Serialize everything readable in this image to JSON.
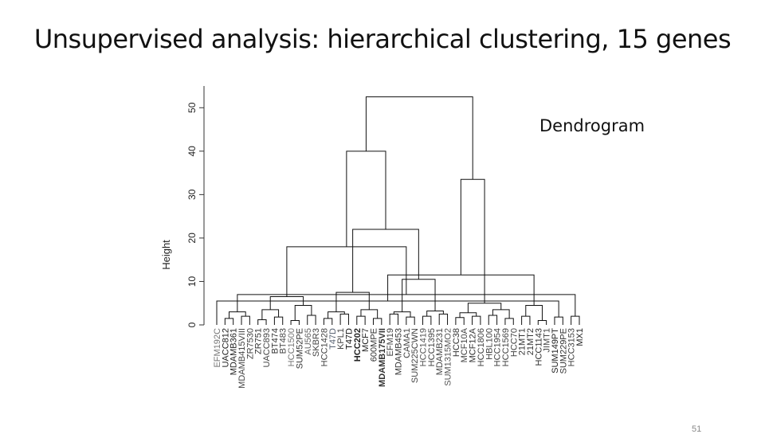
{
  "slide": {
    "title": "Unsupervised analysis: hierarchical clustering, 15 genes",
    "subtitle_label": "Dendrogram",
    "page_number": "51"
  },
  "chart_data": {
    "type": "dendrogram",
    "ylabel": "Height",
    "ylim": [
      0,
      55
    ],
    "yticks": [
      0,
      10,
      20,
      30,
      40,
      50
    ],
    "leaves": [
      "EFM192C",
      "UACC812",
      "MDAMB361",
      "MDAMB415VIII",
      "ZR7530",
      "ZR751",
      "UACC893",
      "BT474",
      "BT483",
      "HCC1500",
      "SUM52PE",
      "AU565",
      "SKBR3",
      "HCC1428",
      "T47D",
      "KPL1",
      "T47D",
      "HCC202",
      "MCF7",
      "600MPE",
      "MDAMB175VII",
      "EFM19",
      "MDAMB453",
      "CAMA1",
      "SUM225CWN",
      "HCC1419",
      "HCC1395",
      "MDAMB231",
      "SUM1315MO2",
      "HCC38",
      "MCF10A",
      "MCF12A",
      "HCC1806",
      "HBL100",
      "HCC1954",
      "HCC1569",
      "HCC70",
      "21MT1",
      "21MT2",
      "HCC1143",
      "JIMT1",
      "SUM149PT",
      "SUM229PE",
      "HCC3153",
      "MX1"
    ],
    "leaf_colors": [
      "#777777",
      "#222222",
      "#222222",
      "#444444",
      "#444444",
      "#333333",
      "#444444",
      "#333333",
      "#444444",
      "#777777",
      "#333333",
      "#666666",
      "#444444",
      "#444444",
      "#556070",
      "#444444",
      "#111111",
      "#222222",
      "#222222",
      "#333333",
      "#333333",
      "#444444",
      "#333333",
      "#444444",
      "#444444",
      "#555555",
      "#444444",
      "#444444",
      "#555555",
      "#333333",
      "#444444",
      "#333333",
      "#444444",
      "#444444",
      "#444444",
      "#444444",
      "#444444",
      "#333333",
      "#333333",
      "#333333",
      "#444444",
      "#222222",
      "#333333",
      "#444444",
      "#222222"
    ],
    "merges": [
      {
        "a": 2,
        "b": 3,
        "h": 1.5
      },
      {
        "a": 4,
        "b": 5,
        "h": 2.0
      },
      {
        "a": 6,
        "b": 7,
        "h": 1.2
      },
      {
        "a": 8,
        "b": 9,
        "h": 1.8
      },
      {
        "a": 10,
        "b": 11,
        "h": 1.0
      },
      {
        "a": 12,
        "b": 13,
        "h": 2.2
      },
      {
        "a": 14,
        "b": 15,
        "h": 1.5
      },
      {
        "a": 16,
        "b": 17,
        "h": 2.5
      },
      {
        "a": 18,
        "b": 19,
        "h": 2.0
      },
      {
        "a": 20,
        "b": 21,
        "h": 1.5
      },
      {
        "a": 22,
        "b": 23,
        "h": 2.5
      },
      {
        "a": 24,
        "b": 25,
        "h": 1.8
      },
      {
        "a": 26,
        "b": 27,
        "h": 2.0
      },
      {
        "a": 28,
        "b": 29,
        "h": 2.5
      },
      {
        "a": 30,
        "b": 31,
        "h": 1.7
      },
      {
        "a": 32,
        "b": 33,
        "h": 2.0
      },
      {
        "a": 34,
        "b": 35,
        "h": 2.2
      },
      {
        "a": 36,
        "b": 37,
        "h": 1.5
      },
      {
        "a": 38,
        "b": 39,
        "h": 2.0
      },
      {
        "a": 40,
        "b": 41,
        "h": 1.0
      },
      {
        "a": 42,
        "b": 43,
        "h": 1.8
      },
      {
        "a": 44,
        "b": 45,
        "h": 2.0
      },
      {
        "a": 46,
        "b": 47,
        "h": 3.0
      },
      {
        "a": 48,
        "b": 49,
        "h": 3.5
      },
      {
        "a": 50,
        "b": 51,
        "h": 4.5
      },
      {
        "a": 52,
        "b": 53,
        "h": 3.0
      },
      {
        "a": 54,
        "b": 55,
        "h": 3.5
      },
      {
        "a": 56,
        "b": 57,
        "h": 3.0
      },
      {
        "a": 58,
        "b": 59,
        "h": 3.2
      },
      {
        "a": 60,
        "b": 61,
        "h": 2.8
      },
      {
        "a": 62,
        "b": 63,
        "h": 3.5
      },
      {
        "a": 64,
        "b": 65,
        "h": 4.5
      },
      {
        "a": 1,
        "b": 66,
        "h": 5.5
      },
      {
        "a": 67,
        "b": 68,
        "h": 7.0
      },
      {
        "a": 69,
        "b": 70,
        "h": 6.5
      },
      {
        "a": 71,
        "b": 72,
        "h": 7.5
      },
      {
        "a": 73,
        "b": 74,
        "h": 10.5
      },
      {
        "a": 75,
        "b": 76,
        "h": 5.0
      },
      {
        "a": 77,
        "b": 78,
        "h": 11.5
      },
      {
        "a": 79,
        "b": 80,
        "h": 18.0
      },
      {
        "a": 81,
        "b": 82,
        "h": 22.0
      },
      {
        "a": 83,
        "b": 84,
        "h": 33.5
      },
      {
        "a": 85,
        "b": 86,
        "h": 40.0
      },
      {
        "a": 87,
        "b": 88,
        "h": 52.5
      }
    ]
  }
}
